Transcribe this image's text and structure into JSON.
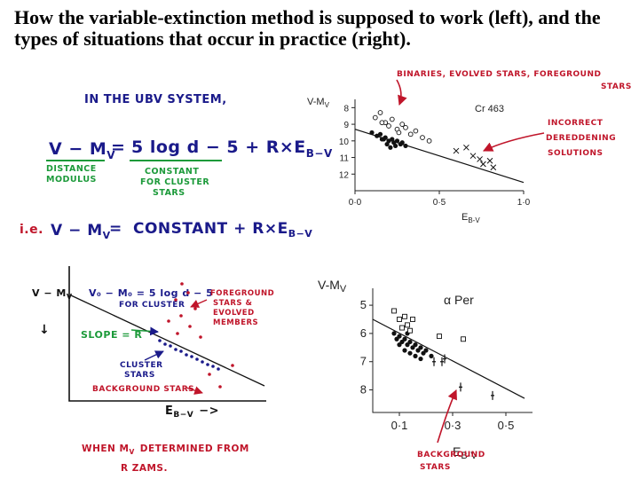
{
  "title": "How the variable-extinction method is supposed to work (left), and the types of situations that occur in practice (right).",
  "left": {
    "line1": "IN THE UBV SYSTEM,",
    "eq_lhs": "V − M",
    "eq_lhs_sub": "V",
    "eq_eq": "=",
    "eq_rhs": "5 log d − 5 + R×E",
    "eq_rhs_sub": "B−V",
    "dm_label_1": "DISTANCE",
    "dm_label_2": "MODULUS",
    "const_label_1": "CONSTANT",
    "const_label_2": "FOR CLUSTER",
    "const_label_3": "STARS",
    "ie": "i.e.",
    "ie_lhs": "V − M",
    "ie_lhs_sub": "V",
    "ie_eq": "=",
    "ie_rhs": "CONSTANT + R×E",
    "ie_rhs_sub": "B−V",
    "diagram": {
      "ylabel": "V − M",
      "ylabel_sub": "V",
      "arrow_down": "↓",
      "v0_1": "V₀ − M₀ = 5 log d − 5",
      "v0_2": "FOR CLUSTER",
      "slope": "SLOPE = R",
      "fg_1": "FOREGROUND",
      "fg_2": "STARS &",
      "fg_3": "EVOLVED",
      "fg_4": "MEMBERS",
      "cl_1": "CLUSTER",
      "cl_2": "STARS",
      "bg": "BACKGROUND STARS",
      "xlabel": "E",
      "xlabel_sub": "B−V",
      "xarrow": "−>"
    },
    "footer_1": "WHEN M",
    "footer_1_sub": "V",
    "footer_1b": "DETERMINED FROM",
    "footer_2": "R ZAMS."
  },
  "right": {
    "notes": {
      "top": "BINARIES, EVOLVED STARS, FOREGROUND",
      "top_2": "STARS",
      "incorrect_1": "INCORRECT",
      "incorrect_2": "DEREDDENING",
      "incorrect_3": "SOLUTIONS",
      "background_1": "BACKGROUND",
      "background_2": "STARS"
    }
  },
  "chart_data": [
    {
      "type": "scatter",
      "title": "Cr 463",
      "xlabel": "E",
      "xlabel_sub": "B-V",
      "ylabel": "V-M",
      "ylabel_sub": "V",
      "xlim": [
        0.0,
        1.0
      ],
      "ylim": [
        13,
        7.5
      ],
      "x_ticks": [
        0.0,
        0.5,
        1.0
      ],
      "x_tick_labels": [
        "0·0",
        "0·5",
        "1·0"
      ],
      "y_ticks": [
        8,
        9,
        10,
        11,
        12
      ],
      "y_tick_labels": [
        "8",
        "9",
        "10",
        "11",
        "12"
      ],
      "fit_line": [
        [
          0.0,
          9.3
        ],
        [
          1.0,
          12.5
        ]
      ],
      "series": [
        {
          "name": "filled",
          "marker": "filled-circle",
          "x": [
            0.1,
            0.13,
            0.15,
            0.17,
            0.18,
            0.2,
            0.22,
            0.23,
            0.25,
            0.27,
            0.28,
            0.3,
            0.19,
            0.21,
            0.24,
            0.16
          ],
          "y": [
            9.5,
            9.7,
            9.6,
            9.9,
            9.8,
            10.0,
            9.9,
            10.1,
            10.0,
            10.2,
            10.1,
            10.3,
            10.2,
            10.4,
            10.3,
            9.9
          ]
        },
        {
          "name": "open",
          "marker": "open-circle",
          "x": [
            0.12,
            0.15,
            0.18,
            0.2,
            0.22,
            0.25,
            0.28,
            0.3,
            0.33,
            0.36,
            0.4,
            0.44,
            0.16,
            0.26
          ],
          "y": [
            8.6,
            8.3,
            8.9,
            9.1,
            8.7,
            9.3,
            9.0,
            9.2,
            9.6,
            9.4,
            9.8,
            10.0,
            8.9,
            9.5
          ]
        },
        {
          "name": "crosses",
          "marker": "x",
          "x": [
            0.6,
            0.66,
            0.7,
            0.74,
            0.76,
            0.8,
            0.82
          ],
          "y": [
            10.6,
            10.4,
            10.9,
            11.1,
            11.4,
            11.2,
            11.6
          ]
        }
      ]
    },
    {
      "type": "scatter",
      "title": "α Per",
      "xlabel": "E",
      "xlabel_sub": "B-V",
      "ylabel": "V-M",
      "ylabel_sub": "V",
      "xlim": [
        0.0,
        0.6
      ],
      "ylim": [
        8.8,
        4.4
      ],
      "x_ticks": [
        0.1,
        0.3,
        0.5
      ],
      "x_tick_labels": [
        "0·1",
        "0·3",
        "0·5"
      ],
      "y_ticks": [
        5,
        6,
        7,
        8
      ],
      "y_tick_labels": [
        "5",
        "6",
        "7",
        "8"
      ],
      "fit_line": [
        [
          0.0,
          5.5
        ],
        [
          0.57,
          8.3
        ]
      ],
      "series": [
        {
          "name": "filled",
          "marker": "filled-circle",
          "x": [
            0.08,
            0.09,
            0.1,
            0.11,
            0.12,
            0.13,
            0.14,
            0.15,
            0.16,
            0.17,
            0.18,
            0.19,
            0.2,
            0.22,
            0.1,
            0.12,
            0.14,
            0.16,
            0.18,
            0.13
          ],
          "y": [
            6.0,
            6.2,
            6.1,
            6.3,
            6.2,
            6.4,
            6.3,
            6.5,
            6.4,
            6.6,
            6.5,
            6.7,
            6.6,
            6.8,
            6.4,
            6.6,
            6.7,
            6.8,
            6.9,
            6.0
          ]
        },
        {
          "name": "open",
          "marker": "open-square",
          "x": [
            0.08,
            0.1,
            0.12,
            0.13,
            0.15,
            0.11,
            0.14,
            0.25,
            0.34
          ],
          "y": [
            5.2,
            5.5,
            5.4,
            5.7,
            5.5,
            5.8,
            5.9,
            6.1,
            6.2
          ]
        },
        {
          "name": "background",
          "marker": "errorbar",
          "x": [
            0.23,
            0.26,
            0.27,
            0.33,
            0.45
          ],
          "y": [
            7.0,
            7.0,
            6.9,
            7.9,
            8.2
          ]
        }
      ]
    }
  ]
}
